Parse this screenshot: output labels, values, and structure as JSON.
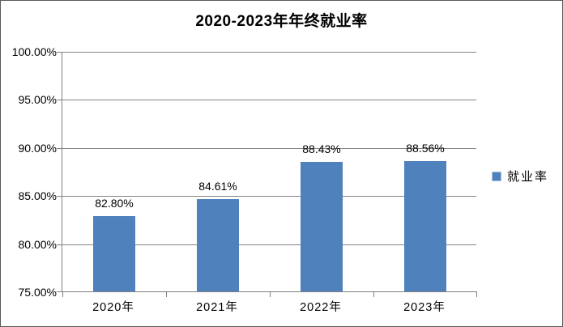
{
  "chart_data": {
    "type": "bar",
    "title": "2020-2023年年终就业率",
    "categories": [
      "2020年",
      "2021年",
      "2022年",
      "2023年"
    ],
    "series": [
      {
        "name": "就业率",
        "values": [
          82.8,
          84.61,
          88.43,
          88.56
        ]
      }
    ],
    "data_labels": [
      "82.80%",
      "84.61%",
      "88.43%",
      "88.56%"
    ],
    "y_ticks": [
      "100.00%",
      "95.00%",
      "90.00%",
      "85.00%",
      "80.00%",
      "75.00%"
    ],
    "ylim": [
      75,
      100
    ],
    "grid": true,
    "legend_position": "right",
    "xlabel": "",
    "ylabel": "",
    "colors": {
      "bar": "#4F81BD",
      "gridline": "#848484",
      "axis": "#7F7F7F",
      "text": "#000000"
    }
  }
}
